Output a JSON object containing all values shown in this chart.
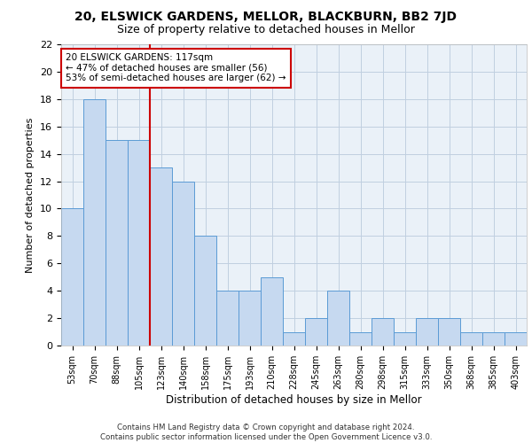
{
  "title1": "20, ELSWICK GARDENS, MELLOR, BLACKBURN, BB2 7JD",
  "title2": "Size of property relative to detached houses in Mellor",
  "xlabel": "Distribution of detached houses by size in Mellor",
  "ylabel": "Number of detached properties",
  "categories": [
    "53sqm",
    "70sqm",
    "88sqm",
    "105sqm",
    "123sqm",
    "140sqm",
    "158sqm",
    "175sqm",
    "193sqm",
    "210sqm",
    "228sqm",
    "245sqm",
    "263sqm",
    "280sqm",
    "298sqm",
    "315sqm",
    "333sqm",
    "350sqm",
    "368sqm",
    "385sqm",
    "403sqm"
  ],
  "values": [
    10,
    18,
    15,
    15,
    13,
    12,
    8,
    4,
    4,
    5,
    1,
    2,
    4,
    1,
    2,
    1,
    2,
    2,
    1,
    1,
    1
  ],
  "bar_color": "#c6d9f0",
  "bar_edge_color": "#5b9bd5",
  "vline_index": 4,
  "vline_color": "#cc0000",
  "annotation_text": "20 ELSWICK GARDENS: 117sqm\n← 47% of detached houses are smaller (56)\n53% of semi-detached houses are larger (62) →",
  "annotation_box_color": "#ffffff",
  "annotation_box_edge": "#cc0000",
  "ylim": [
    0,
    22
  ],
  "yticks": [
    0,
    2,
    4,
    6,
    8,
    10,
    12,
    14,
    16,
    18,
    20,
    22
  ],
  "footer": "Contains HM Land Registry data © Crown copyright and database right 2024.\nContains public sector information licensed under the Open Government Licence v3.0.",
  "grid_color": "#c0cfe0",
  "bg_color": "#eaf1f8",
  "title1_fontsize": 10,
  "title2_fontsize": 9
}
